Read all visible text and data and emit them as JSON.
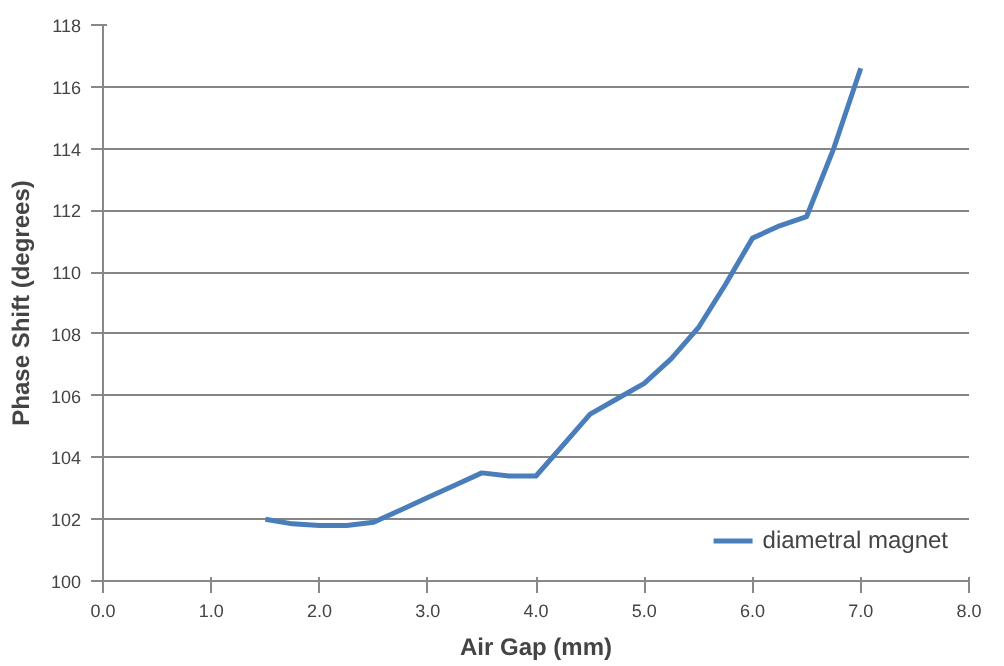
{
  "chart_data": {
    "type": "line",
    "xlabel": "Air Gap (mm)",
    "ylabel": "Phase Shift (degrees)",
    "x": [
      1.5,
      1.75,
      2.0,
      2.25,
      2.5,
      2.75,
      3.0,
      3.25,
      3.5,
      3.75,
      4.0,
      4.25,
      4.5,
      4.75,
      5.0,
      5.25,
      5.5,
      5.75,
      6.0,
      6.25,
      6.5,
      6.75,
      7.0
    ],
    "series": [
      {
        "name": "diametral magnet",
        "color": "#4a7ebb",
        "values": [
          102.0,
          101.85,
          101.8,
          101.8,
          101.9,
          102.3,
          102.7,
          103.1,
          103.5,
          103.4,
          103.4,
          104.4,
          105.4,
          105.9,
          106.4,
          107.2,
          108.2,
          109.6,
          111.1,
          111.5,
          111.8,
          114.0,
          116.6
        ]
      }
    ],
    "xlim": [
      0.0,
      8.0
    ],
    "xticks": [
      {
        "value": 0,
        "label": "0.0"
      },
      {
        "value": 1,
        "label": "1.0"
      },
      {
        "value": 2,
        "label": "2.0"
      },
      {
        "value": 3,
        "label": "3.0"
      },
      {
        "value": 4,
        "label": "4.0"
      },
      {
        "value": 5,
        "label": "5.0"
      },
      {
        "value": 6,
        "label": "6.0"
      },
      {
        "value": 7,
        "label": "7.0"
      },
      {
        "value": 8,
        "label": "8.0"
      }
    ],
    "ylim": [
      100,
      118
    ],
    "yticks": [
      100,
      102,
      104,
      106,
      108,
      110,
      112,
      114,
      116,
      118
    ],
    "grid": "y",
    "legend": "bottom right",
    "marker": "none",
    "line_style": "solid"
  }
}
